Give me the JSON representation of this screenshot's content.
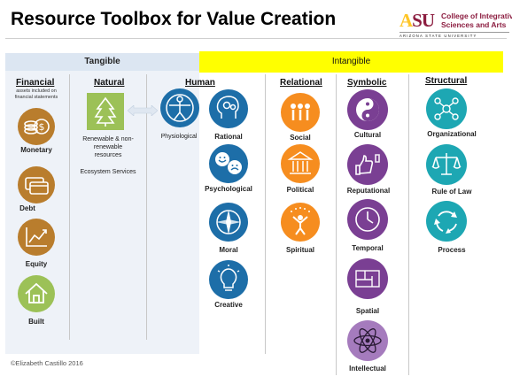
{
  "header": {
    "title": "Resource Toolbox for Value Creation",
    "logo": {
      "mark": "ASU",
      "line1": "College of Integrative",
      "line2": "Sciences and Arts",
      "university": "ARIZONA STATE UNIVERSITY"
    }
  },
  "bands": {
    "tangible": "Tangible",
    "intangible": "Intangible"
  },
  "colors": {
    "tangible_band": "#dce6f2",
    "intangible_band": "#ffff00",
    "financial": "#b97d2d",
    "natural": "#9cc157",
    "human": "#1d6ea8",
    "relational": "#f68d1f",
    "symbolic": "#7a3f93",
    "structural": "#1da7b3"
  },
  "columns": {
    "financial": {
      "header": "Financial",
      "note": "assets included on financial statements",
      "items": [
        {
          "label": "Monetary",
          "icon": "coins-dollar-icon"
        },
        {
          "label": "Debt",
          "icon": "credit-cards-icon"
        },
        {
          "label": "Equity",
          "icon": "growth-chart-icon"
        },
        {
          "label": "Built",
          "icon": "house-icon"
        }
      ]
    },
    "natural": {
      "header": "Natural",
      "items": [
        {
          "label": "Renewable & non-renewable resources",
          "icon": "tree-icon"
        }
      ],
      "extra": "Ecosystem Services"
    },
    "human": {
      "header": "Human",
      "items": [
        {
          "label": "Physiological",
          "icon": "vitruvian-man-icon"
        },
        {
          "label": "Rational",
          "icon": "brain-gears-icon"
        },
        {
          "label": "Psychological",
          "icon": "smiley-faces-icon"
        },
        {
          "label": "Moral",
          "icon": "compass-icon"
        },
        {
          "label": "Creative",
          "icon": "lightbulb-icon"
        }
      ]
    },
    "relational": {
      "header": "Relational",
      "items": [
        {
          "label": "Social",
          "icon": "people-icon"
        },
        {
          "label": "Political",
          "icon": "government-building-icon"
        },
        {
          "label": "Spiritual",
          "icon": "spirit-figure-icon"
        }
      ]
    },
    "symbolic": {
      "header": "Symbolic",
      "items": [
        {
          "label": "Cultural",
          "icon": "yin-yang-icon"
        },
        {
          "label": "Reputational",
          "icon": "thumbs-icon"
        },
        {
          "label": "Temporal",
          "icon": "clock-icon"
        },
        {
          "label": "Spatial",
          "icon": "floor-plan-icon"
        },
        {
          "label": "Intellectual",
          "icon": "atom-icon"
        }
      ]
    },
    "structural": {
      "header": "Structural",
      "items": [
        {
          "label": "Organizational",
          "icon": "network-icon"
        },
        {
          "label": "Rule of Law",
          "icon": "scales-icon"
        },
        {
          "label": "Process",
          "icon": "cycle-arrows-icon"
        }
      ]
    }
  },
  "footer": {
    "copyright": "©Elizabeth Castillo 2016"
  }
}
